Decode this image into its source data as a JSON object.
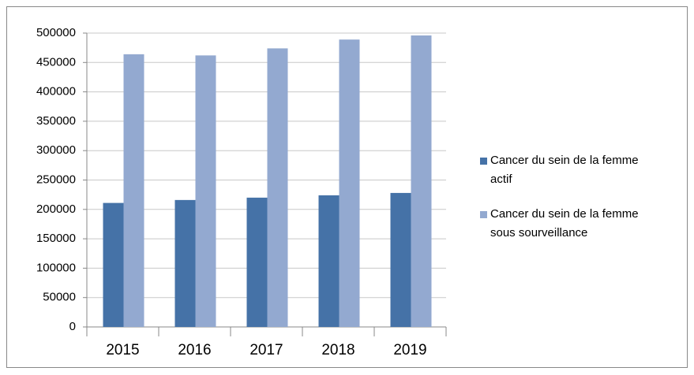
{
  "chart_data": {
    "type": "bar",
    "categories": [
      "2015",
      "2016",
      "2017",
      "2018",
      "2019"
    ],
    "series": [
      {
        "name": "Cancer du sein de la femme actif",
        "color": "#4572a7",
        "values": [
          211000,
          216000,
          220000,
          224000,
          228000
        ]
      },
      {
        "name": "Cancer du sein de la femme sous sourveillance",
        "color": "#93a9d0",
        "values": [
          464000,
          462000,
          474000,
          489000,
          496000
        ]
      }
    ],
    "ylim": [
      0,
      500000
    ],
    "yticks": [
      0,
      50000,
      100000,
      150000,
      200000,
      250000,
      300000,
      350000,
      400000,
      450000,
      500000
    ],
    "grid": true,
    "legend": "right"
  }
}
